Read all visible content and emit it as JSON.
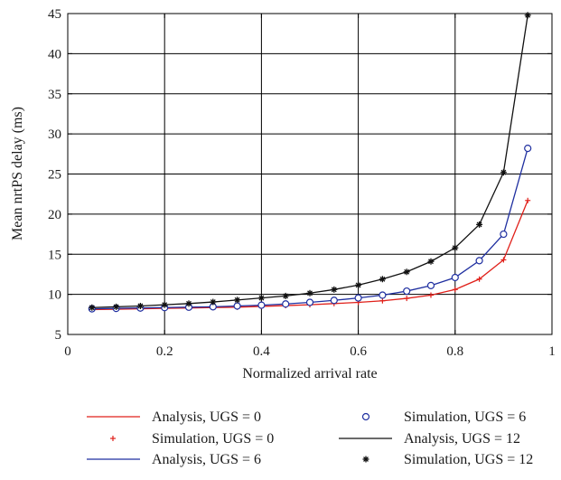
{
  "chart_data": {
    "type": "line",
    "title": "",
    "xlabel": "Normalized arrival rate",
    "ylabel": "Mean nrtPS delay (ms)",
    "xlim": [
      0,
      1
    ],
    "ylim": [
      5,
      45
    ],
    "xticks": [
      0,
      0.2,
      0.4,
      0.6,
      0.8,
      1
    ],
    "xtick_labels": [
      "0",
      "0.2",
      "0.4",
      "0.6",
      "0.8",
      "1"
    ],
    "yticks": [
      5,
      10,
      15,
      20,
      25,
      30,
      35,
      40,
      45
    ],
    "ytick_labels": [
      "5",
      "10",
      "15",
      "20",
      "25",
      "30",
      "35",
      "40",
      "45"
    ],
    "grid": true,
    "legend_position": "bottom",
    "x": [
      0.05,
      0.1,
      0.15,
      0.2,
      0.25,
      0.3,
      0.35,
      0.4,
      0.45,
      0.5,
      0.55,
      0.6,
      0.65,
      0.7,
      0.75,
      0.8,
      0.85,
      0.9,
      0.95
    ],
    "series": [
      {
        "name": "Analysis, UGS = 0",
        "style": "line",
        "color": "#e0201a",
        "values": [
          8.1,
          8.15,
          8.2,
          8.25,
          8.3,
          8.35,
          8.4,
          8.5,
          8.6,
          8.7,
          8.85,
          9.0,
          9.2,
          9.5,
          9.9,
          10.6,
          11.9,
          14.3,
          21.7
        ]
      },
      {
        "name": "Simulation, UGS = 0",
        "style": "marker",
        "marker": "plus",
        "color": "#e0201a",
        "values": [
          8.1,
          8.15,
          8.2,
          8.25,
          8.3,
          8.35,
          8.4,
          8.5,
          8.6,
          8.7,
          8.85,
          9.0,
          9.2,
          9.5,
          9.9,
          10.6,
          11.9,
          14.3,
          21.7
        ]
      },
      {
        "name": "Analysis, UGS = 6",
        "style": "line",
        "color": "#1f2fa0",
        "values": [
          8.2,
          8.25,
          8.3,
          8.35,
          8.4,
          8.45,
          8.55,
          8.65,
          8.8,
          9.0,
          9.25,
          9.55,
          9.9,
          10.4,
          11.1,
          12.1,
          14.2,
          17.5,
          28.2
        ]
      },
      {
        "name": "Simulation, UGS = 6",
        "style": "marker",
        "marker": "circle",
        "color": "#1f2fa0",
        "values": [
          8.2,
          8.25,
          8.3,
          8.35,
          8.4,
          8.45,
          8.55,
          8.65,
          8.8,
          9.0,
          9.25,
          9.55,
          9.9,
          10.4,
          11.1,
          12.1,
          14.2,
          17.5,
          28.2
        ]
      },
      {
        "name": "Analysis, UGS = 12",
        "style": "line",
        "color": "#111111",
        "values": [
          8.35,
          8.45,
          8.55,
          8.7,
          8.85,
          9.05,
          9.3,
          9.55,
          9.8,
          10.15,
          10.6,
          11.15,
          11.9,
          12.8,
          14.1,
          15.8,
          18.7,
          25.2,
          44.8
        ]
      },
      {
        "name": "Simulation, UGS = 12",
        "style": "marker",
        "marker": "star",
        "color": "#111111",
        "values": [
          8.35,
          8.45,
          8.55,
          8.7,
          8.85,
          9.05,
          9.3,
          9.55,
          9.8,
          10.15,
          10.6,
          11.15,
          11.9,
          12.8,
          14.1,
          15.8,
          18.7,
          25.2,
          44.8
        ]
      }
    ],
    "legend": [
      [
        "Analysis, UGS = 0",
        "Simulation, UGS = 6"
      ],
      [
        "Simulation, UGS = 0",
        "Analysis, UGS = 12"
      ],
      [
        "Analysis, UGS = 6",
        "Simulation, UGS = 12"
      ]
    ]
  }
}
